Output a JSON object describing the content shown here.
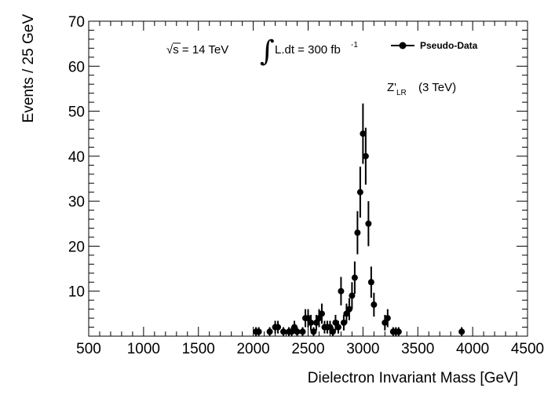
{
  "chart_data": {
    "type": "scatter",
    "xlabel": "Dielectron Invariant Mass [GeV]",
    "ylabel": "Events / 25 GeV",
    "xlim": [
      500,
      4500
    ],
    "ylim": [
      0,
      70
    ],
    "xticks": [
      "500",
      "1000",
      "1500",
      "2000",
      "2500",
      "3000",
      "3500",
      "4000",
      "4500"
    ],
    "yticks": [
      "10",
      "20",
      "30",
      "40",
      "50",
      "60",
      "70"
    ],
    "annotations": {
      "sqrt_s": "√s = 14 TeV",
      "integral_sign": "∫",
      "lumi": "L.dt = 300 fb",
      "lumi_exp": "-1",
      "model": "Z'",
      "model_sub": "LR",
      "model_mass": "(3 TeV)"
    },
    "legend": {
      "label": "Pseudo-Data",
      "position": "top-right"
    },
    "series": [
      {
        "name": "Pseudo-Data",
        "marker": "circle",
        "color": "#000000",
        "points": [
          {
            "x": 2025,
            "y": 1
          },
          {
            "x": 2050,
            "y": 1
          },
          {
            "x": 2150,
            "y": 1
          },
          {
            "x": 2200,
            "y": 2
          },
          {
            "x": 2225,
            "y": 2
          },
          {
            "x": 2275,
            "y": 1
          },
          {
            "x": 2325,
            "y": 1
          },
          {
            "x": 2350,
            "y": 1
          },
          {
            "x": 2375,
            "y": 2
          },
          {
            "x": 2400,
            "y": 1
          },
          {
            "x": 2450,
            "y": 1
          },
          {
            "x": 2475,
            "y": 4
          },
          {
            "x": 2500,
            "y": 4
          },
          {
            "x": 2525,
            "y": 3
          },
          {
            "x": 2550,
            "y": 1
          },
          {
            "x": 2575,
            "y": 3
          },
          {
            "x": 2600,
            "y": 4
          },
          {
            "x": 2625,
            "y": 5
          },
          {
            "x": 2650,
            "y": 2
          },
          {
            "x": 2675,
            "y": 2
          },
          {
            "x": 2700,
            "y": 2
          },
          {
            "x": 2725,
            "y": 1
          },
          {
            "x": 2750,
            "y": 3
          },
          {
            "x": 2775,
            "y": 2
          },
          {
            "x": 2800,
            "y": 10
          },
          {
            "x": 2825,
            "y": 3
          },
          {
            "x": 2850,
            "y": 5
          },
          {
            "x": 2875,
            "y": 6
          },
          {
            "x": 2900,
            "y": 9
          },
          {
            "x": 2925,
            "y": 13
          },
          {
            "x": 2950,
            "y": 23
          },
          {
            "x": 2975,
            "y": 32
          },
          {
            "x": 3000,
            "y": 45
          },
          {
            "x": 3025,
            "y": 40
          },
          {
            "x": 3050,
            "y": 25
          },
          {
            "x": 3075,
            "y": 12
          },
          {
            "x": 3100,
            "y": 7
          },
          {
            "x": 3200,
            "y": 3
          },
          {
            "x": 3225,
            "y": 4
          },
          {
            "x": 3275,
            "y": 1
          },
          {
            "x": 3300,
            "y": 1
          },
          {
            "x": 3325,
            "y": 1
          },
          {
            "x": 3900,
            "y": 1
          }
        ]
      }
    ]
  }
}
